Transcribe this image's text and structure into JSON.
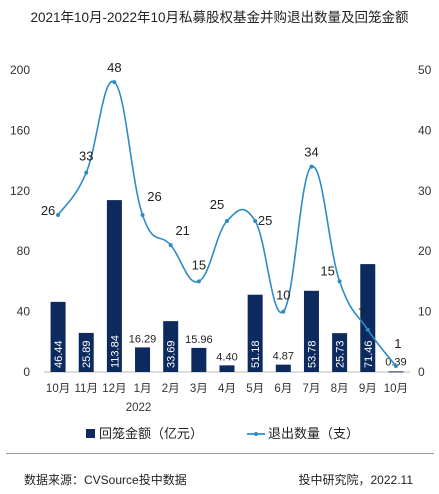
{
  "title": "2021年10月-2022年10月私募股权基金并购退出数量及回笼金额",
  "source": "数据来源：CVSource投中数据",
  "publisher": "投中研究院，2022.11",
  "chart_data": {
    "type": "bar",
    "categories": [
      "10月",
      "11月",
      "12月",
      "1月",
      "2月",
      "3月",
      "4月",
      "5月",
      "6月",
      "7月",
      "8月",
      "9月",
      "10月"
    ],
    "year_label": "2022",
    "series": [
      {
        "name": "回笼金额（亿元）",
        "type": "bar",
        "axis": "left",
        "color": "#0d2a5e",
        "values": [
          46.44,
          25.89,
          113.84,
          16.29,
          33.69,
          15.96,
          4.4,
          51.18,
          4.87,
          53.78,
          25.73,
          71.46,
          0.39
        ],
        "labels": [
          "46.44",
          "25.89",
          "113.84",
          "16.29",
          "33.69",
          "15.96",
          "4.40",
          "51.18",
          "4.87",
          "53.78",
          "25.73",
          "71.46",
          "0.39"
        ]
      },
      {
        "name": "退出数量（支）",
        "type": "line",
        "axis": "right",
        "color": "#2e8bc9",
        "values": [
          26,
          33,
          48,
          26,
          21,
          15,
          25,
          25,
          10,
          34,
          15,
          7,
          1
        ],
        "labels": [
          "26",
          "33",
          "48",
          "26",
          "21",
          "15",
          "25",
          "25",
          "10",
          "34",
          "15",
          "7",
          "1"
        ]
      }
    ],
    "y_left": {
      "ticks": [
        "0",
        "40",
        "80",
        "120",
        "160",
        "200"
      ],
      "ylim": [
        0,
        200
      ]
    },
    "y_right": {
      "ticks": [
        "0",
        "10",
        "20",
        "30",
        "40",
        "50"
      ],
      "ylim": [
        0,
        50
      ]
    },
    "grid": false,
    "legend_position": "bottom"
  }
}
